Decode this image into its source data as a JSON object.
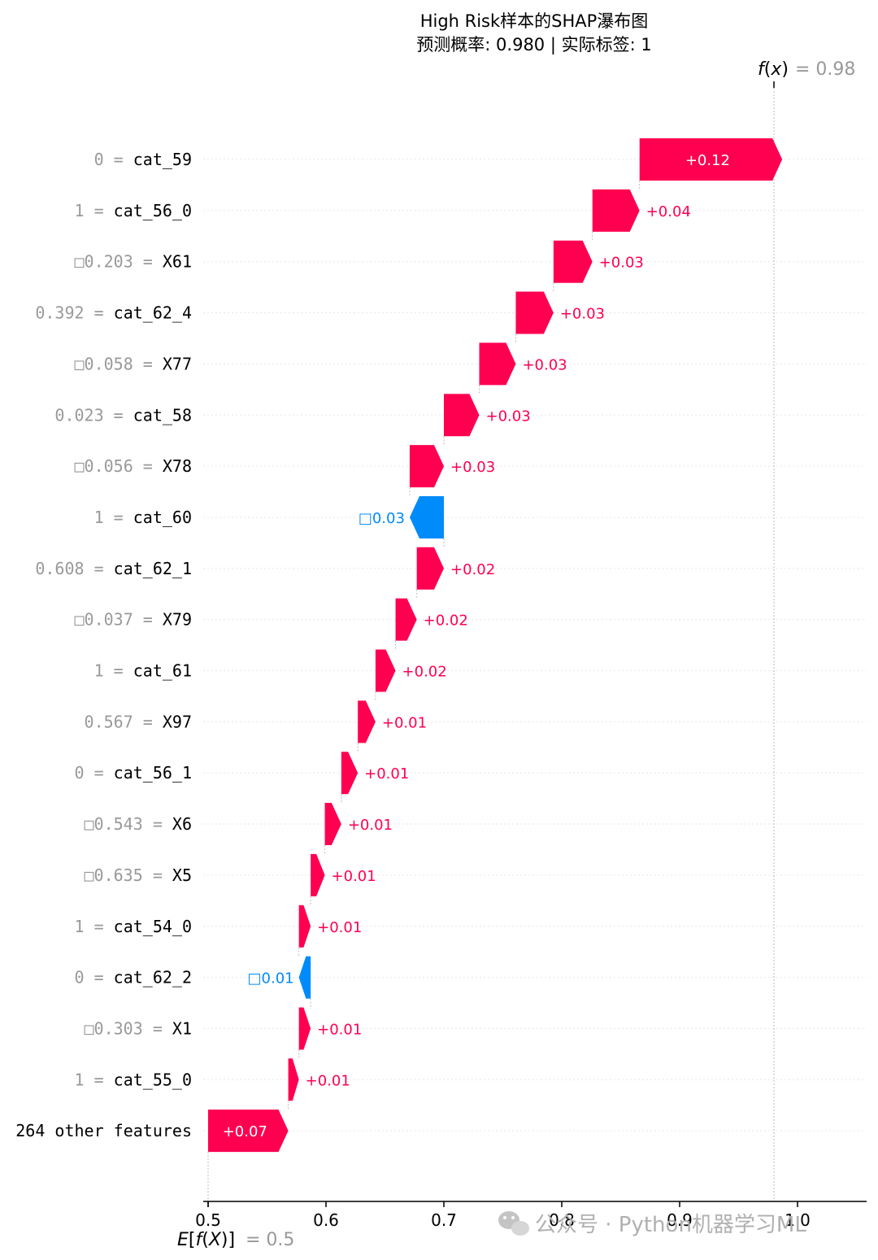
{
  "chart_data": {
    "type": "waterfall",
    "title_line1": "High Risk样本的SHAP瀑布图",
    "title_line2": "预测概率: 0.980 | 实际标签: 1",
    "base_value": 0.5,
    "base_value_label": "= 0.5",
    "base_value_symbol": "E[f(X)]",
    "output_value": 0.98,
    "output_value_label": "= 0.98",
    "output_value_symbol": "f(x)",
    "xlim": [
      0.497,
      1.06
    ],
    "xticks": [
      0.5,
      0.6,
      0.7,
      0.8,
      0.9,
      1.0
    ],
    "xtick_labels": [
      "0.5",
      "0.6",
      "0.7",
      "0.8",
      "0.9",
      "1.0"
    ],
    "positive_color": "#ff0051",
    "negative_color": "#008bfb",
    "features": [
      {
        "value": "0",
        "name": "cat_59",
        "contribution": 0.121,
        "label": "+0.12"
      },
      {
        "value": "1",
        "name": "cat_56_0",
        "contribution": 0.04,
        "label": "+0.04"
      },
      {
        "value": "□0.203",
        "name": "X61",
        "contribution": 0.033,
        "label": "+0.03"
      },
      {
        "value": "0.392",
        "name": "cat_62_4",
        "contribution": 0.032,
        "label": "+0.03"
      },
      {
        "value": "□0.058",
        "name": "X77",
        "contribution": 0.031,
        "label": "+0.03"
      },
      {
        "value": "0.023",
        "name": "cat_58",
        "contribution": 0.03,
        "label": "+0.03"
      },
      {
        "value": "□0.056",
        "name": "X78",
        "contribution": 0.029,
        "label": "+0.03"
      },
      {
        "value": "1",
        "name": "cat_60",
        "contribution": -0.029,
        "label": "□0.03"
      },
      {
        "value": "0.608",
        "name": "cat_62_1",
        "contribution": 0.023,
        "label": "+0.02"
      },
      {
        "value": "□0.037",
        "name": "X79",
        "contribution": 0.018,
        "label": "+0.02"
      },
      {
        "value": "1",
        "name": "cat_61",
        "contribution": 0.017,
        "label": "+0.02"
      },
      {
        "value": "0.567",
        "name": "X97",
        "contribution": 0.015,
        "label": "+0.01"
      },
      {
        "value": "0",
        "name": "cat_56_1",
        "contribution": 0.014,
        "label": "+0.01"
      },
      {
        "value": "□0.543",
        "name": "X6",
        "contribution": 0.014,
        "label": "+0.01"
      },
      {
        "value": "□0.635",
        "name": "X5",
        "contribution": 0.012,
        "label": "+0.01"
      },
      {
        "value": "1",
        "name": "cat_54_0",
        "contribution": 0.01,
        "label": "+0.01"
      },
      {
        "value": "0",
        "name": "cat_62_2",
        "contribution": -0.01,
        "label": "□0.01"
      },
      {
        "value": "□0.303",
        "name": "X1",
        "contribution": 0.01,
        "label": "+0.01"
      },
      {
        "value": "1",
        "name": "cat_55_0",
        "contribution": 0.009,
        "label": "+0.01"
      },
      {
        "value": "",
        "name": "264 other features",
        "contribution": 0.068,
        "label": "+0.07"
      }
    ]
  },
  "watermark": {
    "text": "公众号 · Python机器学习ML",
    "icon": "wechat-icon"
  }
}
